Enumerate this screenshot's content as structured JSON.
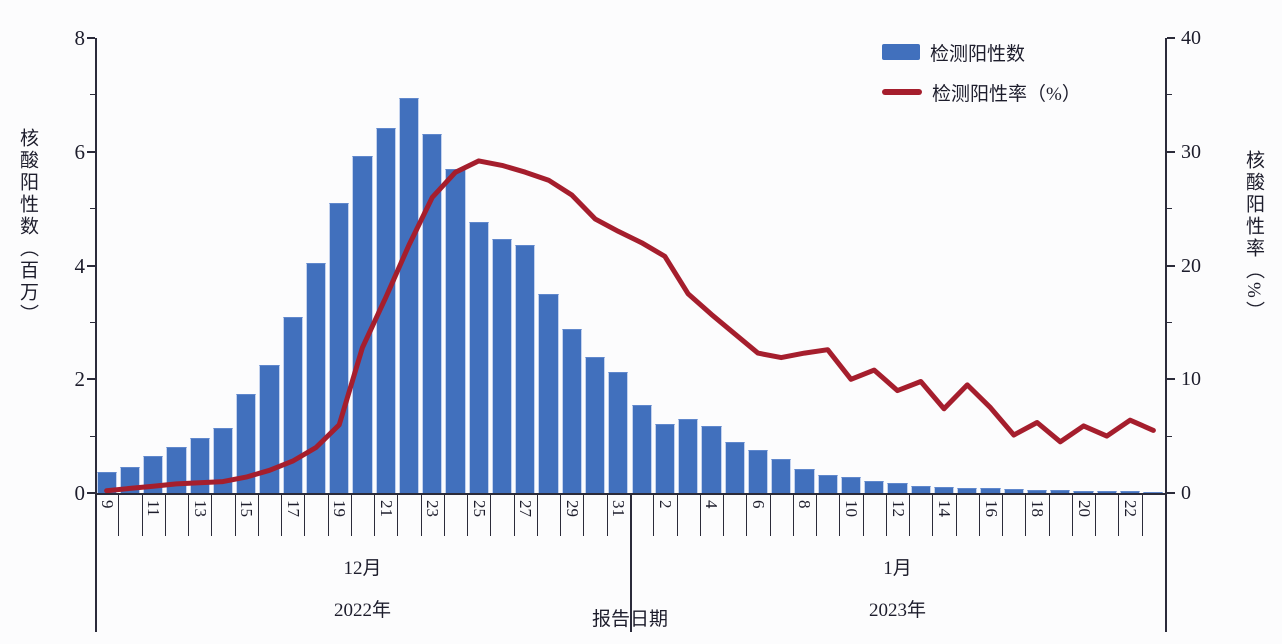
{
  "chart_data": {
    "type": "bar",
    "subtype": "combo-bar-line",
    "title": "",
    "x_axis_title": "报告日期",
    "left_axis": {
      "title": "核酸阳性数（百万）",
      "ticks": [
        "0",
        "2",
        "4",
        "6",
        "8"
      ],
      "tick_values": [
        0,
        2,
        4,
        6,
        8
      ],
      "max": 8,
      "minor_step": 1
    },
    "right_axis": {
      "title": "核酸阳性率（%）",
      "ticks": [
        "0",
        "10",
        "20",
        "30",
        "40"
      ],
      "tick_values": [
        0,
        10,
        20,
        30,
        40
      ],
      "max": 40,
      "minor_step": 5
    },
    "legend": [
      {
        "label": "检测阳性数",
        "type": "bar",
        "color": "#4170BD"
      },
      {
        "label": "检测阳性率（%）",
        "type": "line",
        "color": "#A51E2D"
      }
    ],
    "legend_position": "top-right",
    "grid": false,
    "categories": [
      "9",
      "10",
      "11",
      "12",
      "13",
      "14",
      "15",
      "16",
      "17",
      "18",
      "19",
      "20",
      "21",
      "22",
      "23",
      "24",
      "25",
      "26",
      "27",
      "28",
      "29",
      "30",
      "31",
      "1",
      "2",
      "3",
      "4",
      "5",
      "6",
      "7",
      "8",
      "9",
      "10",
      "11",
      "12",
      "13",
      "14",
      "15",
      "16",
      "17",
      "18",
      "19",
      "20",
      "21",
      "22",
      "23"
    ],
    "x_tick_labels": [
      "9",
      "",
      "11",
      "",
      "13",
      "",
      "15",
      "",
      "17",
      "",
      "19",
      "",
      "21",
      "",
      "23",
      "",
      "25",
      "",
      "27",
      "",
      "29",
      "",
      "31",
      "",
      "2",
      "",
      "4",
      "",
      "6",
      "",
      "8",
      "",
      "10",
      "",
      "12",
      "",
      "14",
      "",
      "16",
      "",
      "18",
      "",
      "20",
      "",
      "22",
      ""
    ],
    "groups": [
      {
        "month": "12月",
        "year": "2022年",
        "start": 0,
        "end": 23
      },
      {
        "month": "1月",
        "year": "2023年",
        "start": 23,
        "end": 46
      }
    ],
    "series": [
      {
        "name": "检测阳性数",
        "axis": "left",
        "unit": "百万",
        "values": [
          0.37,
          0.46,
          0.65,
          0.81,
          0.97,
          1.15,
          1.74,
          2.25,
          3.1,
          4.05,
          5.1,
          5.92,
          6.42,
          6.94,
          6.32,
          5.7,
          4.76,
          4.46,
          4.36,
          3.5,
          2.89,
          2.4,
          2.12,
          1.55,
          1.22,
          1.3,
          1.17,
          0.9,
          0.76,
          0.6,
          0.42,
          0.31,
          0.28,
          0.21,
          0.17,
          0.13,
          0.11,
          0.09,
          0.08,
          0.07,
          0.06,
          0.05,
          0.04,
          0.035,
          0.03,
          0.02
        ]
      },
      {
        "name": "检测阳性率（%）",
        "axis": "right",
        "unit": "%",
        "values": [
          0.2,
          0.4,
          0.6,
          0.8,
          0.9,
          1.0,
          1.4,
          2.0,
          2.8,
          4.0,
          6.0,
          12.8,
          17.2,
          21.8,
          26.0,
          28.2,
          29.2,
          28.8,
          28.2,
          27.5,
          26.2,
          24.1,
          23.0,
          22.0,
          20.8,
          17.5,
          15.7,
          14.0,
          12.3,
          11.9,
          12.3,
          12.6,
          10.0,
          10.8,
          9.0,
          9.8,
          7.4,
          9.5,
          7.5,
          5.1,
          6.2,
          4.5,
          5.9,
          5.0,
          6.4,
          5.5
        ]
      }
    ]
  },
  "colors": {
    "bar_fill": "#4170BD",
    "bar_edge": "#c3d2ee",
    "line": "#A51E2D",
    "axis": "#2b2b3a",
    "text": "#1d1d2c",
    "background": "#fcfcfd"
  }
}
